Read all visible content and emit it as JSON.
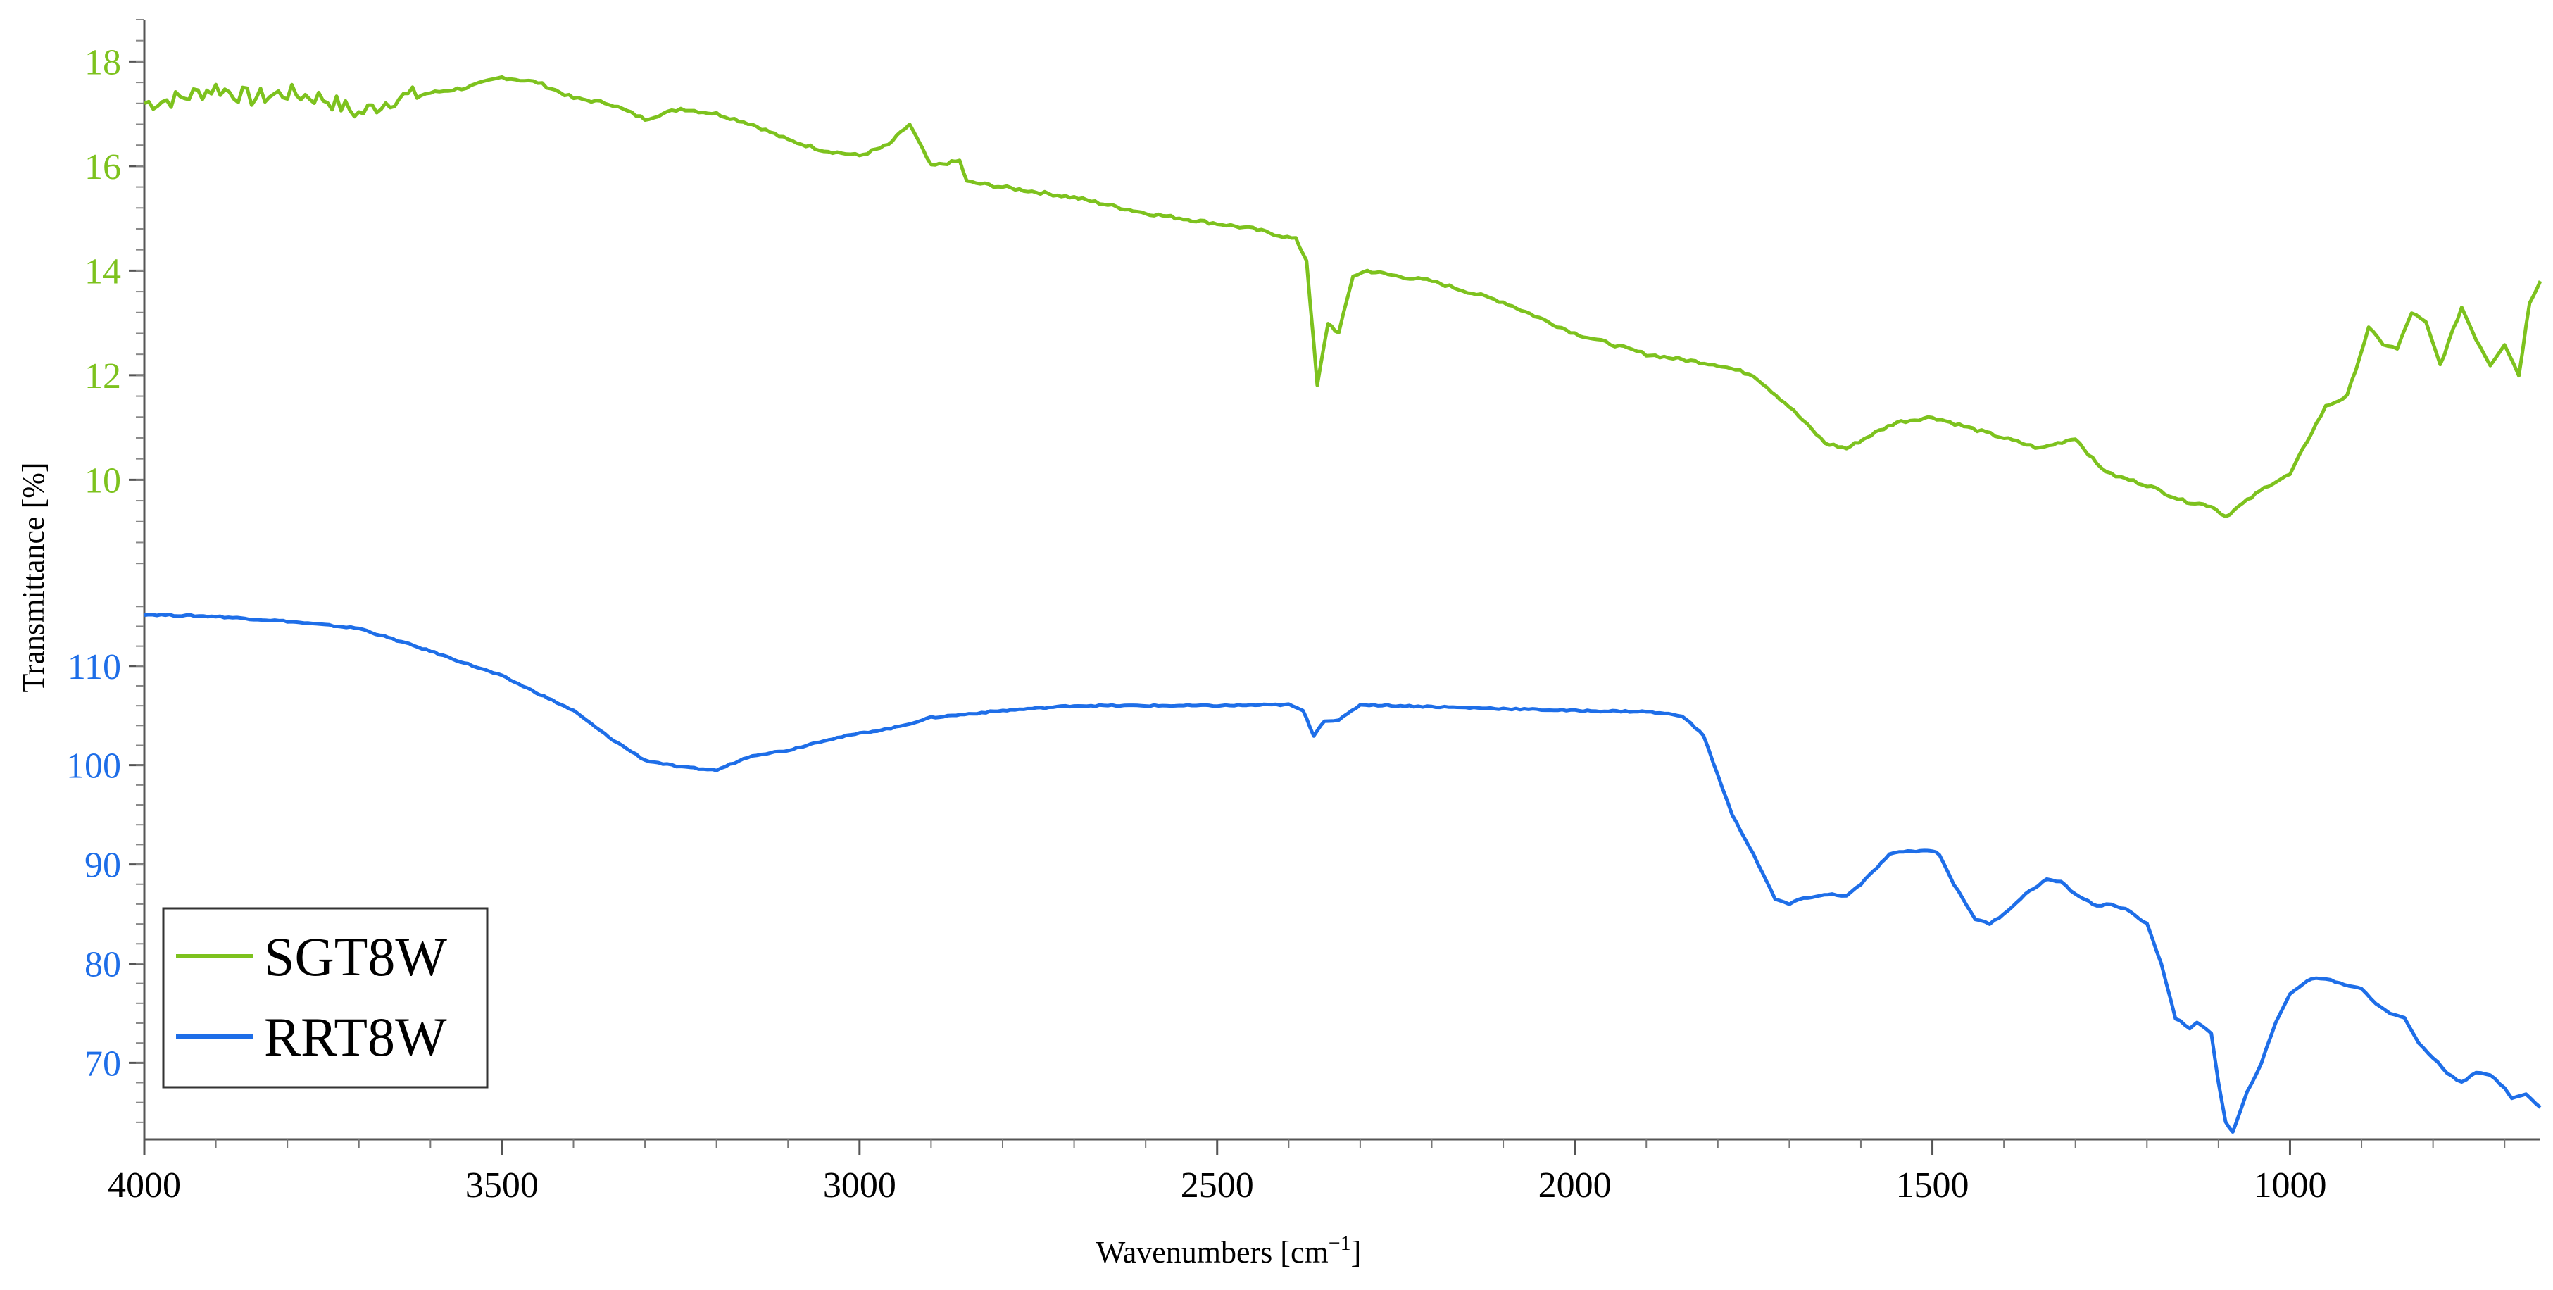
{
  "chart_data": {
    "type": "line",
    "xlabel": "Wavenumbers [cm",
    "xlabel_sup": "−1",
    "xlabel_end": "]",
    "ylabel": "Transmittance [%]",
    "x_range": [
      4000,
      650
    ],
    "x_reversed": true,
    "x_ticks": [
      4000,
      3500,
      3000,
      2500,
      2000,
      1500,
      1000
    ],
    "legend_position": "bottom-left",
    "grid": false,
    "series": [
      {
        "name": "SGT8W",
        "color": "#7dc21e",
        "y_axis": "upper",
        "y_range": [
          8.2,
          18.8
        ],
        "y_ticks": [
          10,
          12,
          14,
          16,
          18
        ],
        "x": [
          4000,
          3950,
          3900,
          3850,
          3800,
          3750,
          3700,
          3650,
          3600,
          3550,
          3500,
          3450,
          3400,
          3350,
          3300,
          3250,
          3200,
          3150,
          3100,
          3050,
          3000,
          2960,
          2930,
          2900,
          2860,
          2850,
          2800,
          2700,
          2600,
          2500,
          2450,
          2390,
          2375,
          2360,
          2345,
          2330,
          2310,
          2290,
          2250,
          2200,
          2150,
          2100,
          2050,
          2000,
          1950,
          1900,
          1850,
          1800,
          1750,
          1700,
          1650,
          1620,
          1580,
          1550,
          1500,
          1450,
          1400,
          1350,
          1300,
          1270,
          1250,
          1200,
          1150,
          1110,
          1090,
          1060,
          1030,
          1000,
          970,
          950,
          920,
          890,
          870,
          850,
          830,
          810,
          790,
          760,
          740,
          720,
          700,
          680,
          665,
          650
        ],
        "y": [
          17.2,
          17.3,
          17.5,
          17.3,
          17.4,
          17.3,
          17.0,
          17.3,
          17.4,
          17.5,
          17.7,
          17.6,
          17.3,
          17.2,
          16.9,
          17.1,
          17.0,
          16.8,
          16.5,
          16.3,
          16.2,
          16.4,
          16.8,
          16.0,
          16.1,
          15.7,
          15.6,
          15.4,
          15.1,
          14.9,
          14.8,
          14.6,
          14.2,
          11.8,
          13.0,
          12.8,
          13.9,
          14.0,
          13.9,
          13.8,
          13.6,
          13.4,
          13.1,
          12.8,
          12.6,
          12.4,
          12.3,
          12.2,
          12.0,
          11.4,
          10.7,
          10.6,
          10.9,
          11.1,
          11.2,
          11.0,
          10.8,
          10.6,
          10.8,
          10.3,
          10.1,
          9.9,
          9.6,
          9.5,
          9.3,
          9.6,
          9.9,
          10.1,
          10.9,
          11.4,
          11.6,
          12.9,
          12.6,
          12.5,
          13.2,
          13.0,
          12.2,
          13.3,
          12.7,
          12.2,
          12.6,
          12.0,
          13.4,
          13.8
        ]
      },
      {
        "name": "RRT8W",
        "color": "#1e6ee8",
        "y_axis": "lower",
        "y_range": [
          62.5,
          116.8
        ],
        "y_ticks": [
          70,
          80,
          90,
          100,
          110
        ],
        "x": [
          4000,
          3900,
          3800,
          3700,
          3600,
          3500,
          3400,
          3350,
          3300,
          3250,
          3200,
          3150,
          3100,
          3050,
          3000,
          2950,
          2900,
          2800,
          2700,
          2600,
          2500,
          2400,
          2380,
          2365,
          2350,
          2330,
          2300,
          2250,
          2200,
          2100,
          2000,
          1900,
          1850,
          1820,
          1800,
          1780,
          1750,
          1720,
          1700,
          1680,
          1640,
          1620,
          1600,
          1560,
          1540,
          1500,
          1490,
          1470,
          1440,
          1420,
          1400,
          1370,
          1340,
          1320,
          1300,
          1270,
          1250,
          1230,
          1200,
          1180,
          1160,
          1140,
          1130,
          1110,
          1100,
          1090,
          1080,
          1070,
          1060,
          1040,
          1020,
          1000,
          970,
          950,
          930,
          900,
          880,
          860,
          840,
          820,
          800,
          780,
          760,
          740,
          720,
          700,
          690,
          670,
          650
        ],
        "y": [
          115.2,
          115.0,
          114.5,
          113.8,
          111.5,
          109.0,
          105.5,
          102.8,
          100.5,
          99.8,
          99.5,
          101.0,
          101.5,
          102.5,
          103.2,
          103.8,
          104.8,
          105.5,
          106.0,
          106.0,
          106.0,
          106.1,
          105.5,
          103.0,
          104.5,
          104.5,
          106.1,
          106.0,
          105.9,
          105.7,
          105.5,
          105.4,
          105.0,
          103.0,
          99.0,
          95.0,
          91.0,
          86.5,
          86.0,
          86.6,
          87.0,
          86.8,
          88.0,
          91.0,
          91.3,
          91.4,
          91.0,
          88.0,
          84.5,
          84.0,
          85.0,
          87.0,
          88.5,
          88.2,
          87.0,
          85.8,
          86.0,
          85.5,
          84.0,
          80.0,
          74.5,
          73.5,
          74.0,
          73.0,
          68.0,
          64.0,
          63.0,
          65.0,
          67.0,
          70.0,
          74.0,
          77.0,
          78.5,
          78.5,
          78.0,
          77.5,
          76.0,
          75.0,
          74.5,
          72.0,
          70.5,
          69.0,
          68.0,
          69.0,
          68.8,
          67.5,
          66.5,
          66.8,
          65.5
        ]
      }
    ]
  }
}
